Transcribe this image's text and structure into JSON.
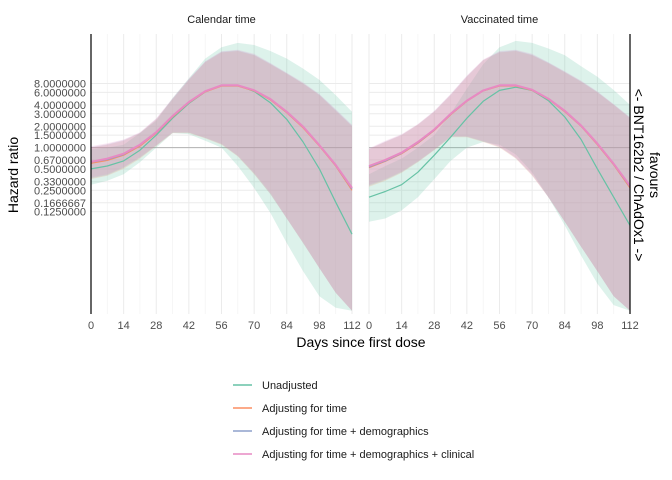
{
  "chart_data": {
    "type": "line",
    "xlabel": "Days since first dose",
    "ylabel": "Hazard ratio",
    "right_label_line1": "favours",
    "right_label_line2": "<- BNT162b2 / ChAdOx1 ->",
    "facets": [
      "Calendar time",
      "Vaccinated time"
    ],
    "x_ticks": [
      0,
      14,
      28,
      42,
      56,
      70,
      84,
      98,
      112
    ],
    "x_tick_labels": [
      "0",
      "14",
      "28",
      "42",
      "56",
      "70",
      "84",
      "98",
      "112"
    ],
    "xlim": [
      0,
      112
    ],
    "y_scale": "log",
    "ylim": [
      0.0045,
      40
    ],
    "y_ticks": [
      0.125,
      0.1666667,
      0.25,
      0.33,
      0.5,
      0.67,
      1,
      1.5,
      2,
      3,
      4,
      6,
      8
    ],
    "y_tick_labels": [
      "0.1250000",
      "0.1666667",
      "0.2500000",
      "0.3300000",
      "0.5000000",
      "0.6700000",
      "1.0000000",
      "1.5000000",
      "2.0000000",
      "3.0000000",
      "4.0000000",
      "6.0000000",
      "8.0000000"
    ],
    "reference_line_y": 1,
    "grid": true,
    "legend_position": "bottom",
    "series": [
      {
        "name": "Unadjusted",
        "color": "#66c2a5",
        "panels": [
          {
            "x": [
              0,
              7,
              14,
              21,
              28,
              35,
              42,
              49,
              56,
              63,
              70,
              77,
              84,
              91,
              98,
              105,
              112
            ],
            "y": [
              0.5,
              0.55,
              0.65,
              0.92,
              1.5,
              2.6,
              4.2,
              6.1,
              7.6,
              7.6,
              6.2,
              4.3,
              2.5,
              1.2,
              0.5,
              0.17,
              0.06
            ],
            "lower": [
              0.3,
              0.34,
              0.42,
              0.62,
              1.0,
              1.6,
              1.55,
              1.25,
              1.0,
              0.55,
              0.27,
              0.12,
              0.045,
              0.018,
              0.008,
              0.0055,
              0.005
            ],
            "upper": [
              0.95,
              1.0,
              1.1,
              1.6,
              2.4,
              5.0,
              9.5,
              18,
              26,
              30,
              28,
              23,
              18,
              13,
              9,
              5.5,
              3.2
            ]
          },
          {
            "x": [
              0,
              7,
              14,
              21,
              28,
              35,
              42,
              49,
              56,
              63,
              70,
              77,
              84,
              91,
              98,
              105,
              112
            ],
            "y": [
              0.2,
              0.24,
              0.3,
              0.45,
              0.78,
              1.4,
              2.6,
              4.5,
              6.4,
              7.1,
              6.4,
              4.6,
              2.7,
              1.3,
              0.5,
              0.2,
              0.08
            ],
            "lower": [
              0.09,
              0.1,
              0.13,
              0.2,
              0.36,
              0.65,
              1.0,
              1.2,
              1.1,
              0.8,
              0.45,
              0.2,
              0.08,
              0.03,
              0.012,
              0.006,
              0.005
            ],
            "upper": [
              0.42,
              0.55,
              0.7,
              1.0,
              1.5,
              3.0,
              6.8,
              15,
              26,
              32,
              30,
              25,
              20,
              14,
              10,
              6.5,
              4.0
            ]
          }
        ]
      },
      {
        "name": "Adjusting for time",
        "color": "#fc8d62",
        "panels": [
          {
            "x": [
              0,
              7,
              14,
              21,
              28,
              35,
              42,
              49,
              56,
              63,
              70,
              77,
              84,
              91,
              98,
              105,
              112
            ],
            "y": [
              0.6,
              0.66,
              0.78,
              1.05,
              1.6,
              2.7,
              4.3,
              6.1,
              7.4,
              7.4,
              6.3,
              4.7,
              3.1,
              1.9,
              1.05,
              0.55,
              0.25
            ],
            "lower": [
              0.36,
              0.4,
              0.5,
              0.7,
              1.05,
              1.6,
              1.6,
              1.35,
              1.1,
              0.75,
              0.42,
              0.22,
              0.1,
              0.045,
              0.02,
              0.009,
              0.005
            ],
            "upper": [
              1.0,
              1.1,
              1.25,
              1.6,
              2.5,
              4.8,
              9.0,
              16,
              22,
              23,
              20,
              15,
              11,
              8,
              5.5,
              3.3,
              2.0
            ]
          },
          {
            "x": [
              0,
              7,
              14,
              21,
              28,
              35,
              42,
              49,
              56,
              63,
              70,
              77,
              84,
              91,
              98,
              105,
              112
            ],
            "y": [
              0.52,
              0.64,
              0.82,
              1.15,
              1.75,
              2.9,
              4.5,
              6.3,
              7.4,
              7.4,
              6.4,
              4.8,
              3.2,
              2.0,
              1.1,
              0.57,
              0.27
            ],
            "lower": [
              0.28,
              0.34,
              0.44,
              0.62,
              0.92,
              1.4,
              1.4,
              1.2,
              1.0,
              0.7,
              0.4,
              0.2,
              0.09,
              0.04,
              0.018,
              0.008,
              0.005
            ],
            "upper": [
              0.95,
              1.2,
              1.5,
              2.1,
              3.2,
              5.5,
              10,
              17,
              22,
              23,
              20,
              15.5,
              11.5,
              8.5,
              6,
              4,
              2.6
            ]
          }
        ]
      },
      {
        "name": "Adjusting for time + demographics",
        "color": "#8da0cb",
        "panels": [
          {
            "x": [
              0,
              7,
              14,
              21,
              28,
              35,
              42,
              49,
              56,
              63,
              70,
              77,
              84,
              91,
              98,
              105,
              112
            ],
            "y": [
              0.62,
              0.68,
              0.8,
              1.08,
              1.62,
              2.75,
              4.35,
              6.2,
              7.5,
              7.5,
              6.4,
              4.8,
              3.15,
              1.95,
              1.07,
              0.56,
              0.26
            ],
            "lower": [
              0.37,
              0.41,
              0.52,
              0.72,
              1.07,
              1.62,
              1.62,
              1.37,
              1.12,
              0.76,
              0.43,
              0.22,
              0.1,
              0.045,
              0.02,
              0.009,
              0.005
            ],
            "upper": [
              1.02,
              1.12,
              1.28,
              1.62,
              2.55,
              4.9,
              9.2,
              16.3,
              22.5,
              23.5,
              20.5,
              15.3,
              11.2,
              8.1,
              5.6,
              3.4,
              2.05
            ]
          },
          {
            "x": [
              0,
              7,
              14,
              21,
              28,
              35,
              42,
              49,
              56,
              63,
              70,
              77,
              84,
              91,
              98,
              105,
              112
            ],
            "y": [
              0.53,
              0.65,
              0.83,
              1.17,
              1.77,
              2.95,
              4.55,
              6.35,
              7.5,
              7.5,
              6.5,
              4.85,
              3.25,
              2.02,
              1.12,
              0.58,
              0.28
            ],
            "lower": [
              0.29,
              0.35,
              0.45,
              0.63,
              0.93,
              1.42,
              1.42,
              1.22,
              1.02,
              0.71,
              0.41,
              0.2,
              0.09,
              0.04,
              0.018,
              0.008,
              0.005
            ],
            "upper": [
              0.96,
              1.22,
              1.52,
              2.12,
              3.25,
              5.6,
              10.2,
              17.2,
              22.5,
              23.5,
              20.5,
              15.8,
              11.7,
              8.6,
              6.1,
              4.05,
              2.65
            ]
          }
        ]
      },
      {
        "name": "Adjusting for time + demographics + clinical",
        "color": "#e78ac3",
        "panels": [
          {
            "x": [
              0,
              7,
              14,
              21,
              28,
              35,
              42,
              49,
              56,
              63,
              70,
              77,
              84,
              91,
              98,
              105,
              112
            ],
            "y": [
              0.63,
              0.7,
              0.82,
              1.1,
              1.65,
              2.8,
              4.4,
              6.25,
              7.55,
              7.55,
              6.45,
              4.85,
              3.2,
              1.98,
              1.08,
              0.57,
              0.27
            ],
            "lower": [
              0.38,
              0.42,
              0.53,
              0.73,
              1.08,
              1.64,
              1.64,
              1.38,
              1.13,
              0.77,
              0.44,
              0.23,
              0.1,
              0.046,
              0.02,
              0.009,
              0.005
            ],
            "upper": [
              1.05,
              1.15,
              1.3,
              1.65,
              2.6,
              5.0,
              9.4,
              16.5,
              22.8,
              24,
              21,
              15.6,
              11.4,
              8.3,
              5.7,
              3.5,
              2.1
            ]
          },
          {
            "x": [
              0,
              7,
              14,
              21,
              28,
              35,
              42,
              49,
              56,
              63,
              70,
              77,
              84,
              91,
              98,
              105,
              112
            ],
            "y": [
              0.55,
              0.67,
              0.85,
              1.2,
              1.8,
              3.0,
              4.6,
              6.4,
              7.55,
              7.55,
              6.55,
              4.9,
              3.3,
              2.05,
              1.14,
              0.59,
              0.29
            ],
            "lower": [
              0.3,
              0.36,
              0.46,
              0.64,
              0.94,
              1.44,
              1.44,
              1.24,
              1.04,
              0.72,
              0.42,
              0.2,
              0.09,
              0.04,
              0.018,
              0.008,
              0.005
            ],
            "upper": [
              0.98,
              1.25,
              1.55,
              2.15,
              3.3,
              5.7,
              10.4,
              17.5,
              23,
              24,
              21,
              16,
              11.9,
              8.8,
              6.2,
              4.1,
              2.7
            ]
          }
        ]
      }
    ]
  }
}
